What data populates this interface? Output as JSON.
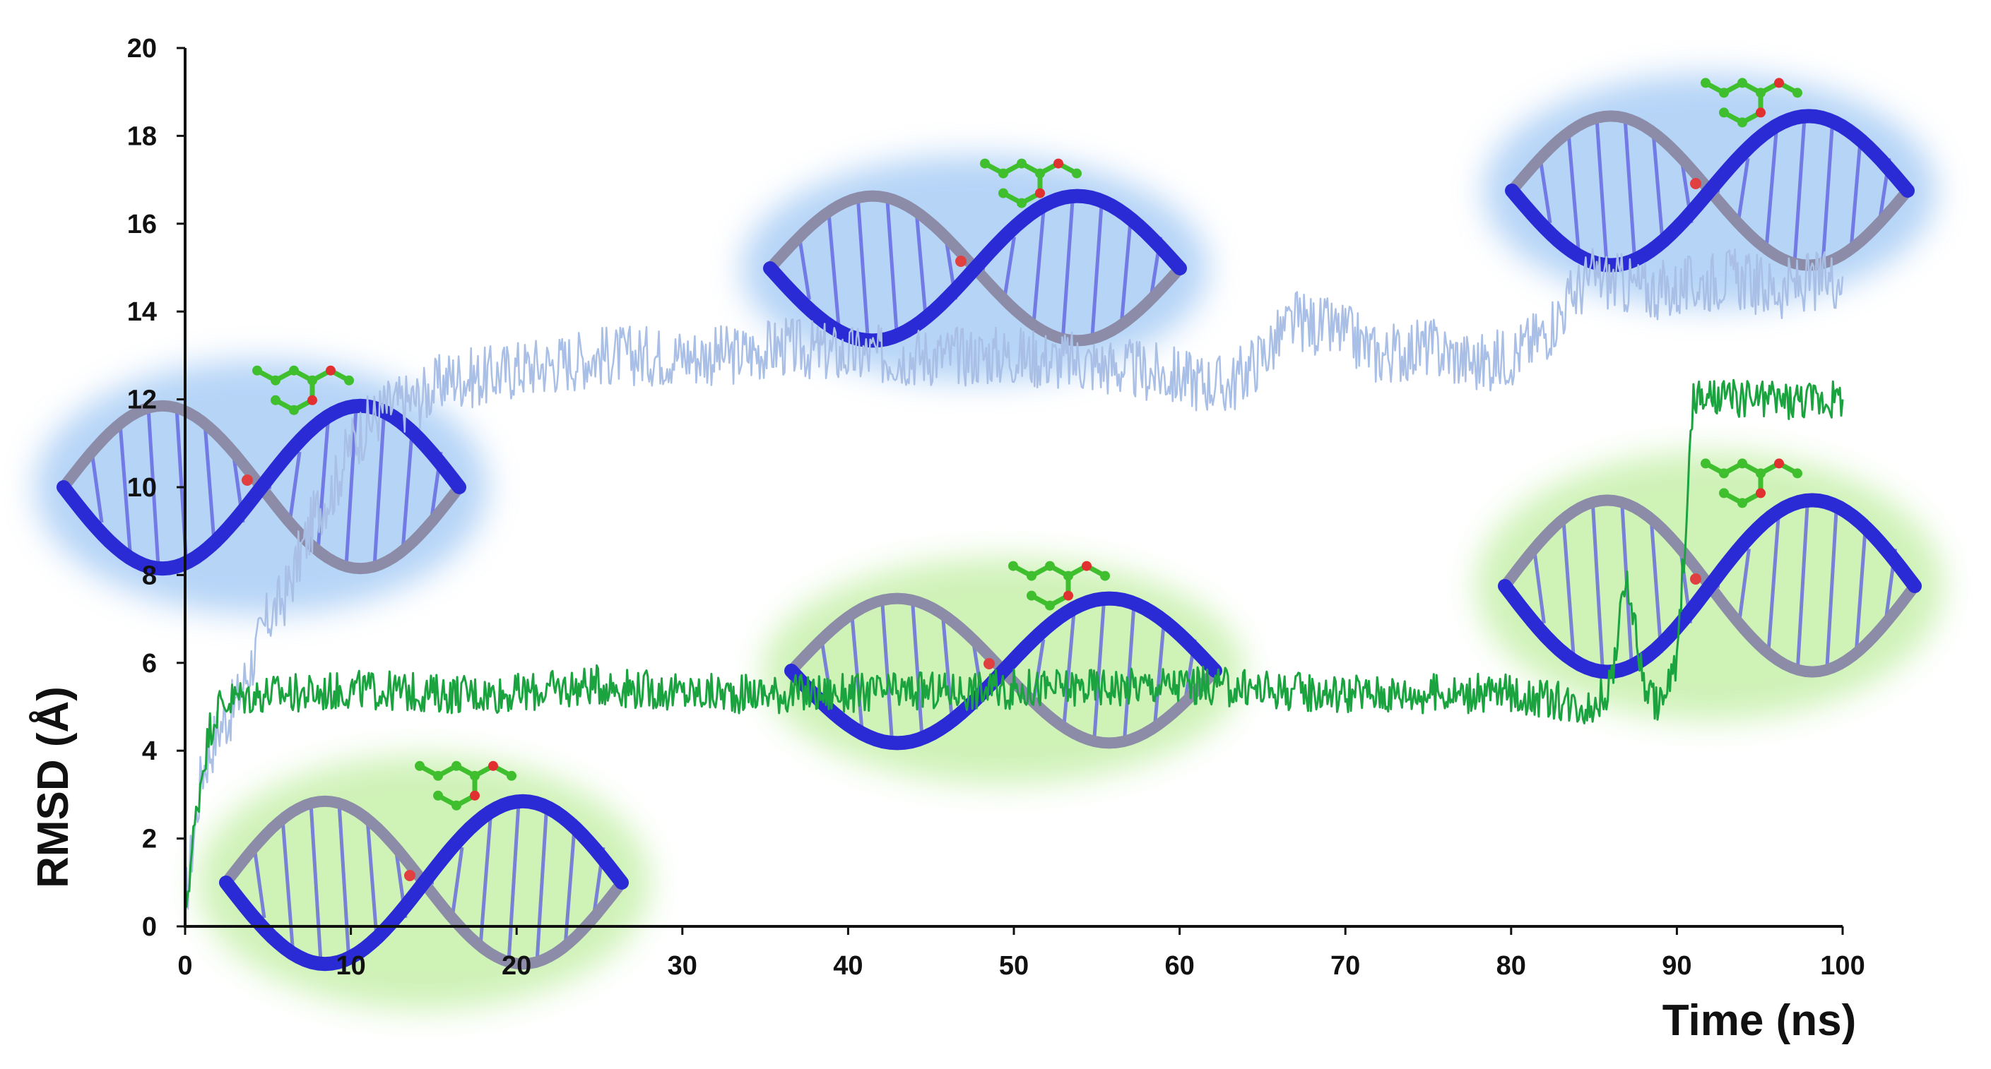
{
  "chart_data": {
    "type": "line",
    "title": "",
    "xlabel": "Time (ns)",
    "ylabel": "RMSD (Å)",
    "xlim": [
      0,
      100
    ],
    "ylim": [
      0,
      20
    ],
    "x_ticks": [
      "0",
      "10",
      "20",
      "30",
      "40",
      "50",
      "60",
      "70",
      "80",
      "90",
      "100"
    ],
    "y_ticks": [
      "0",
      "2",
      "4",
      "6",
      "8",
      "10",
      "12",
      "14",
      "16",
      "18",
      "20"
    ],
    "grid": false,
    "legend": "none",
    "series": [
      {
        "color": "#a9bfe6",
        "x": [
          0,
          1,
          2,
          3,
          4,
          5,
          6,
          7,
          8,
          9,
          10,
          12,
          14,
          16,
          18,
          20,
          22,
          25,
          28,
          30,
          33,
          36,
          40,
          45,
          50,
          55,
          60,
          63,
          65,
          67,
          70,
          72,
          75,
          78,
          80,
          82,
          84,
          85,
          88,
          90,
          93,
          96,
          100
        ],
        "y": [
          0.5,
          3.5,
          4.5,
          5.0,
          6.0,
          7.0,
          7.5,
          8.5,
          9.5,
          10.0,
          11.0,
          11.8,
          12.0,
          12.5,
          12.5,
          12.7,
          12.8,
          13.0,
          13.0,
          13.0,
          13.0,
          13.2,
          13.0,
          13.0,
          13.0,
          12.8,
          12.5,
          12.3,
          13.0,
          13.8,
          13.5,
          13.0,
          13.2,
          12.8,
          13.0,
          13.5,
          14.5,
          14.8,
          14.5,
          14.5,
          14.8,
          14.5,
          14.8
        ]
      },
      {
        "color": "#1aa33f",
        "x": [
          0,
          0.5,
          1,
          1.5,
          2,
          3,
          5,
          8,
          10,
          15,
          20,
          25,
          30,
          40,
          50,
          60,
          70,
          80,
          85,
          86,
          87,
          88,
          89,
          90,
          91,
          95,
          100
        ],
        "y": [
          0.3,
          2.0,
          3.5,
          4.5,
          5.0,
          5.2,
          5.3,
          5.3,
          5.4,
          5.3,
          5.3,
          5.5,
          5.3,
          5.3,
          5.4,
          5.5,
          5.3,
          5.3,
          5.0,
          5.5,
          8.0,
          5.5,
          5.0,
          6.0,
          12.0,
          12.0,
          12.0
        ]
      }
    ]
  },
  "snapshots": [
    {
      "name": "snapshot-blue-1",
      "glow": "#9dc6f4",
      "ligand": "#3fbf2e"
    },
    {
      "name": "snapshot-blue-2",
      "glow": "#9dc6f4",
      "ligand": "#3fbf2e"
    },
    {
      "name": "snapshot-blue-3",
      "glow": "#9dc6f4",
      "ligand": "#3fbf2e"
    },
    {
      "name": "snapshot-green-1",
      "glow": "#bfeea0",
      "ligand": "#3fbf2e"
    },
    {
      "name": "snapshot-green-2",
      "glow": "#bfeea0",
      "ligand": "#3fbf2e"
    },
    {
      "name": "snapshot-green-3",
      "glow": "#bfeea0",
      "ligand": "#3fbf2e"
    }
  ],
  "colors": {
    "axis": "#111111",
    "ribbon": "#2b2bd6",
    "ribbon_back": "#8c8ca8"
  }
}
